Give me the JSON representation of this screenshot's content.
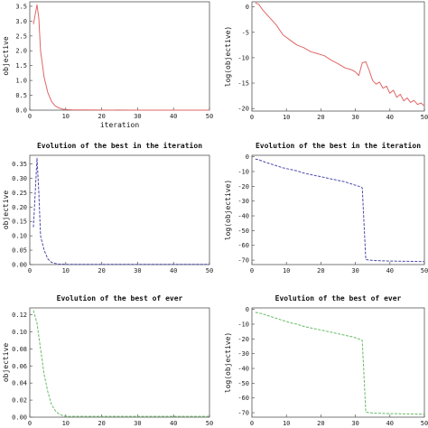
{
  "chart_data": [
    {
      "type": "line",
      "title": "",
      "xlabel": "iteration",
      "ylabel": "objective",
      "xlim": [
        0,
        50
      ],
      "ylim": [
        0,
        3.65
      ],
      "grid": false,
      "xticks": [
        "0",
        "10",
        "20",
        "30",
        "40",
        "50"
      ],
      "yticks": [
        "0.0",
        "0.5",
        "1.0",
        "1.5",
        "2.0",
        "2.5",
        "3.0",
        "3.5"
      ],
      "xtick_values": [
        0,
        10,
        20,
        30,
        40,
        50
      ],
      "ytick_values": [
        0,
        0.5,
        1,
        1.5,
        2,
        2.5,
        3,
        3.5
      ],
      "color": "#e06666",
      "dashed": false,
      "x": [
        1,
        2,
        2.5,
        3,
        4,
        5,
        6,
        7,
        8,
        9,
        10,
        12,
        15,
        20,
        30,
        40,
        50
      ],
      "y": [
        2.9,
        3.55,
        3.1,
        2.0,
        1.1,
        0.6,
        0.3,
        0.15,
        0.08,
        0.04,
        0.02,
        0.01,
        0.005,
        0.002,
        0.001,
        0.001,
        0.001
      ]
    },
    {
      "type": "line",
      "title": "",
      "xlabel": "",
      "ylabel": "log(objective)",
      "xlim": [
        0,
        50
      ],
      "ylim": [
        -20.5,
        1
      ],
      "grid": false,
      "xticks": [
        "0",
        "10",
        "20",
        "30",
        "40",
        "50"
      ],
      "yticks": [
        "0",
        "-5",
        "-10",
        "-15",
        "-20"
      ],
      "xtick_values": [
        0,
        10,
        20,
        30,
        40,
        50
      ],
      "ytick_values": [
        0,
        -5,
        -10,
        -15,
        -20
      ],
      "color": "#e06666",
      "dashed": false,
      "x": [
        1,
        2,
        3,
        5,
        7,
        9,
        11,
        13,
        15,
        17,
        19,
        21,
        23,
        25,
        27,
        29,
        30,
        31,
        32,
        33,
        34,
        35,
        36,
        37,
        38,
        39,
        40,
        41,
        42,
        43,
        44,
        45,
        46,
        47,
        48,
        49,
        50
      ],
      "y": [
        0.8,
        0.5,
        -0.5,
        -2,
        -3.5,
        -5.5,
        -6.5,
        -7.5,
        -8,
        -8.8,
        -9.2,
        -9.6,
        -10.5,
        -11.2,
        -12,
        -12.4,
        -12.8,
        -13.5,
        -11,
        -10.8,
        -12.5,
        -14.5,
        -15.2,
        -14.8,
        -16,
        -15.6,
        -17,
        -16.4,
        -17.8,
        -17.2,
        -18.5,
        -17.9,
        -18.8,
        -18.4,
        -19.2,
        -18.9,
        -19.5
      ]
    },
    {
      "type": "line",
      "title": "Evolution of the best in the iteration",
      "xlabel": "",
      "ylabel": "objective",
      "xlim": [
        0,
        50
      ],
      "ylim": [
        0,
        0.38
      ],
      "grid": false,
      "xticks": [
        "0",
        "10",
        "20",
        "30",
        "40",
        "50"
      ],
      "yticks": [
        "0.00",
        "0.05",
        "0.10",
        "0.15",
        "0.20",
        "0.25",
        "0.30",
        "0.35"
      ],
      "xtick_values": [
        0,
        10,
        20,
        30,
        40,
        50
      ],
      "ytick_values": [
        0,
        0.05,
        0.1,
        0.15,
        0.2,
        0.25,
        0.3,
        0.35
      ],
      "color": "#4a4aa8",
      "dashed": true,
      "x": [
        1,
        2,
        2.5,
        3,
        4,
        5,
        6,
        7,
        8,
        10,
        15,
        20,
        30,
        40,
        50
      ],
      "y": [
        0.13,
        0.37,
        0.25,
        0.1,
        0.05,
        0.02,
        0.008,
        0.004,
        0.002,
        0.001,
        0.001,
        0.001,
        0.001,
        0.001,
        0.001
      ]
    },
    {
      "type": "line",
      "title": "Evolution of the best in the iteration",
      "xlabel": "",
      "ylabel": "log(objective)",
      "xlim": [
        0,
        50
      ],
      "ylim": [
        -73,
        1
      ],
      "grid": false,
      "xticks": [
        "0",
        "10",
        "20",
        "30",
        "40",
        "50"
      ],
      "yticks": [
        "0",
        "-10",
        "-20",
        "-30",
        "-40",
        "-50",
        "-60",
        "-70"
      ],
      "xtick_values": [
        0,
        10,
        20,
        30,
        40,
        50
      ],
      "ytick_values": [
        0,
        -10,
        -20,
        -30,
        -40,
        -50,
        -60,
        -70
      ],
      "color": "#4a4aa8",
      "dashed": true,
      "x": [
        1,
        2,
        3,
        5,
        7,
        9,
        11,
        13,
        15,
        17,
        19,
        21,
        23,
        25,
        27,
        29,
        31,
        32,
        33,
        34,
        36,
        40,
        45,
        50
      ],
      "y": [
        -1.5,
        -2,
        -3,
        -4.5,
        -6,
        -7.5,
        -8.5,
        -9.5,
        -11,
        -12,
        -13,
        -14,
        -15,
        -16,
        -17,
        -18.5,
        -20,
        -21,
        -69.5,
        -70,
        -70.3,
        -70.6,
        -70.8,
        -71
      ]
    },
    {
      "type": "line",
      "title": "Evolution of the best of ever",
      "xlabel": "",
      "ylabel": "objective",
      "xlim": [
        0,
        50
      ],
      "ylim": [
        0,
        0.128
      ],
      "grid": false,
      "xticks": [
        "0",
        "10",
        "20",
        "30",
        "40",
        "50"
      ],
      "yticks": [
        "0.00",
        "0.02",
        "0.04",
        "0.06",
        "0.08",
        "0.10",
        "0.12"
      ],
      "xtick_values": [
        0,
        10,
        20,
        30,
        40,
        50
      ],
      "ytick_values": [
        0,
        0.02,
        0.04,
        0.06,
        0.08,
        0.1,
        0.12
      ],
      "color": "#66bb66",
      "dashed": true,
      "x": [
        1,
        2,
        3,
        4,
        5,
        6,
        7,
        8,
        9,
        10,
        12,
        15,
        20,
        30,
        40,
        50
      ],
      "y": [
        0.125,
        0.11,
        0.08,
        0.05,
        0.03,
        0.015,
        0.008,
        0.004,
        0.002,
        0.001,
        0.001,
        0.001,
        0.001,
        0.001,
        0.001,
        0.001
      ]
    },
    {
      "type": "line",
      "title": "Evolution of the best of ever",
      "xlabel": "",
      "ylabel": "log(objective)",
      "xlim": [
        0,
        50
      ],
      "ylim": [
        -73,
        1
      ],
      "grid": false,
      "xticks": [
        "0",
        "10",
        "20",
        "30",
        "40",
        "50"
      ],
      "yticks": [
        "0",
        "-10",
        "-20",
        "-30",
        "-40",
        "-50",
        "-60",
        "-70"
      ],
      "xtick_values": [
        0,
        10,
        20,
        30,
        40,
        50
      ],
      "ytick_values": [
        0,
        -10,
        -20,
        -30,
        -40,
        -50,
        -60,
        -70
      ],
      "color": "#66bb66",
      "dashed": true,
      "x": [
        1,
        3,
        5,
        7,
        9,
        11,
        13,
        15,
        17,
        19,
        21,
        23,
        25,
        27,
        29,
        31,
        32,
        33,
        34,
        36,
        40,
        45,
        50
      ],
      "y": [
        -2,
        -3,
        -4.5,
        -6,
        -7.5,
        -9,
        -10,
        -11.5,
        -12.5,
        -13.5,
        -14.5,
        -15.5,
        -16.5,
        -17.5,
        -18.5,
        -20,
        -21,
        -69.5,
        -70,
        -70.3,
        -70.6,
        -70.8,
        -71
      ]
    }
  ]
}
